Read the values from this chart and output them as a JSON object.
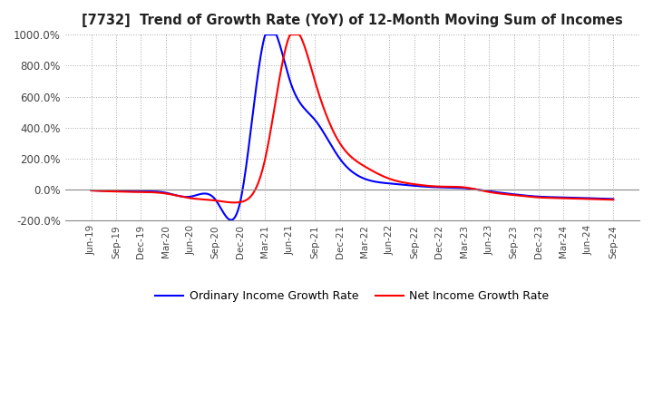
{
  "title": "[7732]  Trend of Growth Rate (YoY) of 12-Month Moving Sum of Incomes",
  "ylim": [
    -200,
    1000
  ],
  "yticks": [
    -200,
    0,
    200,
    400,
    600,
    800,
    1000
  ],
  "background_color": "#ffffff",
  "grid_color": "#aaaaaa",
  "legend_labels": [
    "Ordinary Income Growth Rate",
    "Net Income Growth Rate"
  ],
  "legend_colors": [
    "#0000ff",
    "#ff0000"
  ],
  "x_labels": [
    "Jun-19",
    "Sep-19",
    "Dec-19",
    "Mar-20",
    "Jun-20",
    "Sep-20",
    "Dec-20",
    "Mar-21",
    "Jun-21",
    "Sep-21",
    "Dec-21",
    "Mar-22",
    "Jun-22",
    "Sep-22",
    "Dec-22",
    "Mar-23",
    "Jun-23",
    "Sep-23",
    "Dec-23",
    "Mar-24",
    "Jun-24",
    "Sep-24"
  ],
  "ordinary_income_growth": [
    -5,
    -10,
    -12,
    -20,
    -45,
    -65,
    -75,
    1000,
    700,
    450,
    200,
    70,
    40,
    25,
    15,
    10,
    -10,
    -30,
    -45,
    -50,
    -55,
    -60
  ],
  "net_income_growth": [
    -5,
    -12,
    -15,
    -25,
    -55,
    -70,
    -80,
    200,
    1000,
    700,
    300,
    150,
    70,
    35,
    20,
    15,
    -15,
    -35,
    -50,
    -55,
    -60,
    -65
  ]
}
